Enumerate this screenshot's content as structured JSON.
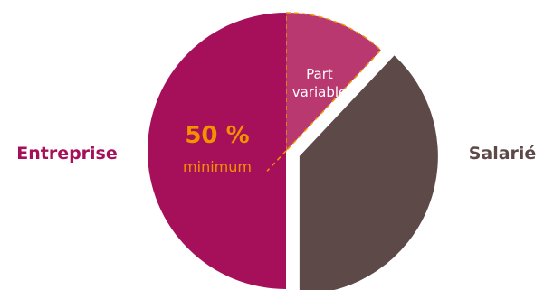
{
  "chart_data": {
    "type": "pie",
    "title": "",
    "slices": [
      {
        "key": "entreprise",
        "label": "Entreprise",
        "value": 50,
        "color": "#a60f5a",
        "offset": 0
      },
      {
        "key": "part_variable",
        "label": "Part variable",
        "label_lines": [
          "Part",
          "variable"
        ],
        "value": 12,
        "color": "#b8386f",
        "offset": 0,
        "dashed_outline": true
      },
      {
        "key": "salarie",
        "label": "Salarié",
        "value": 38,
        "color": "#5d4a48",
        "offset": 1
      }
    ],
    "side_labels": {
      "left": {
        "text": "Entreprise",
        "color": "#a60f5a"
      },
      "right": {
        "text": "Salarié",
        "color": "#5d4a48"
      }
    },
    "annotation": {
      "value_text": "50 %",
      "sub_text": "minimum",
      "color": "#f39200"
    },
    "dashed_color": "#f39200"
  }
}
